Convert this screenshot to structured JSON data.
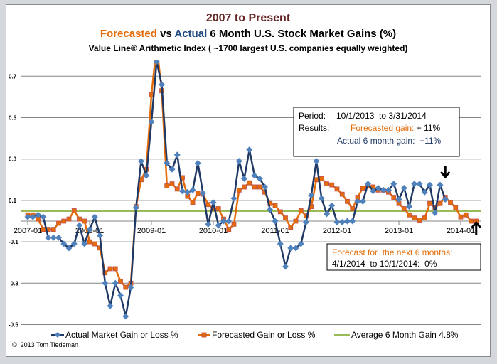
{
  "chart_data": {
    "type": "line",
    "title": "2007 to Present",
    "subtitle_parts": {
      "forecasted": "Forecasted",
      "vs": " vs ",
      "actual": "Actual",
      "rest": " 6 Month U.S. Stock Market Gains (%)"
    },
    "subtitle2": "Value Line® Arithmetic Index ( ~1700 largest U.S. companies equally weighted)",
    "ylim": [
      -0.5,
      0.8
    ],
    "yticks": [
      "0.7",
      "0.5",
      "0.3",
      "0.1",
      "-0.1",
      "-0.3",
      "-0.5"
    ],
    "ytick_values": [
      0.7,
      0.5,
      0.3,
      0.1,
      -0.1,
      -0.3,
      -0.5
    ],
    "xtick_labels": [
      "2007-01",
      "2008-01",
      "2009-01",
      "2010-01",
      "2011-01",
      "2012-01",
      "2013-01",
      "2014-01"
    ],
    "grid": true,
    "legend_placement": "bottom",
    "x_dates": [
      "2007-01",
      "2007-02",
      "2007-03",
      "2007-04",
      "2007-05",
      "2007-06",
      "2007-07",
      "2007-08",
      "2007-09",
      "2007-10",
      "2007-11",
      "2007-12",
      "2008-01",
      "2008-02",
      "2008-03",
      "2008-04",
      "2008-05",
      "2008-06",
      "2008-07",
      "2008-08",
      "2008-09",
      "2008-10",
      "2008-11",
      "2008-12",
      "2009-01",
      "2009-02",
      "2009-03",
      "2009-04",
      "2009-05",
      "2009-06",
      "2009-07",
      "2009-08",
      "2009-09",
      "2009-10",
      "2009-11",
      "2009-12",
      "2010-01",
      "2010-02",
      "2010-03",
      "2010-04",
      "2010-05",
      "2010-06",
      "2010-07",
      "2010-08",
      "2010-09",
      "2010-10",
      "2010-11",
      "2010-12",
      "2011-01",
      "2011-02",
      "2011-03",
      "2011-04",
      "2011-05",
      "2011-06",
      "2011-07",
      "2011-08",
      "2011-09",
      "2011-10",
      "2011-11",
      "2011-12",
      "2012-01",
      "2012-02",
      "2012-03",
      "2012-04",
      "2012-05",
      "2012-06",
      "2012-07",
      "2012-08",
      "2012-09",
      "2012-10",
      "2012-11",
      "2012-12",
      "2013-01",
      "2013-02",
      "2013-03",
      "2013-04",
      "2013-05",
      "2013-06",
      "2013-07",
      "2013-08",
      "2013-09",
      "2013-10",
      "2013-11",
      "2013-12",
      "2014-01",
      "2014-02",
      "2014-03",
      "2014-04"
    ],
    "series": [
      {
        "name": "Actual Market Gain or Loss %",
        "color": "#1f3864",
        "marker_color": "#4f81bd",
        "marker": "diamond",
        "values": [
          0.02,
          0.02,
          0.03,
          0.02,
          -0.08,
          -0.08,
          -0.08,
          -0.11,
          -0.13,
          -0.11,
          -0.02,
          -0.11,
          -0.04,
          0.02,
          -0.07,
          -0.3,
          -0.41,
          -0.3,
          -0.36,
          -0.46,
          -0.32,
          0.065,
          0.29,
          0.22,
          0.48,
          0.77,
          0.66,
          0.28,
          0.25,
          0.32,
          0.145,
          0.14,
          0.15,
          0.28,
          0.135,
          -0.015,
          0.09,
          -0.02,
          0.0,
          0.0,
          0.11,
          0.29,
          0.205,
          0.345,
          0.22,
          0.205,
          0.165,
          0.055,
          0.0,
          -0.11,
          -0.22,
          -0.13,
          -0.13,
          -0.11,
          -0.005,
          0.125,
          0.29,
          0.11,
          0.035,
          0.075,
          -0.005,
          -0.005,
          0.0,
          0.0,
          0.095,
          0.095,
          0.18,
          0.145,
          0.16,
          0.15,
          0.15,
          0.18,
          0.105,
          0.16,
          0.07,
          0.18,
          0.18,
          0.14,
          0.175,
          0.04,
          0.175,
          0.105
        ]
      },
      {
        "name": "Forecasted Gain or Loss %",
        "color": "#e36c09",
        "marker_color": "#e36c09",
        "marker": "square",
        "values": [
          0.03,
          0.03,
          0.01,
          -0.04,
          -0.04,
          -0.04,
          -0.01,
          0.0,
          0.01,
          0.05,
          0.01,
          0.0,
          -0.1,
          -0.11,
          -0.13,
          -0.25,
          -0.23,
          -0.23,
          -0.29,
          -0.32,
          -0.3,
          0.07,
          0.2,
          0.25,
          0.61,
          0.85,
          0.63,
          0.17,
          0.18,
          0.155,
          0.21,
          0.12,
          0.09,
          0.135,
          0.13,
          0.08,
          0.06,
          0.06,
          0.01,
          -0.04,
          -0.015,
          0.15,
          0.165,
          0.185,
          0.165,
          0.165,
          0.14,
          0.085,
          0.075,
          0.045,
          0.015,
          -0.03,
          0.0,
          0.05,
          0.025,
          0.07,
          0.2,
          0.205,
          0.18,
          0.175,
          0.155,
          0.13,
          0.095,
          0.06,
          0.115,
          0.16,
          0.17,
          0.165,
          0.15,
          0.15,
          0.14,
          0.115,
          0.085,
          0.06,
          0.03,
          0.015,
          0.005,
          0.015,
          0.085,
          0.065,
          0.085,
          0.115,
          0.09,
          0.065,
          0.02,
          0.03,
          0.0,
          0.0
        ]
      },
      {
        "name": "Average 6 Month Gain 4.8%",
        "color": "#9bbb59",
        "constant": 0.048
      }
    ],
    "annotations": {
      "results_box": {
        "period_label": "Period:",
        "period_value": "10/1/2013  to 3/31/2014",
        "results_label": "Results:",
        "forecast_text": "Forecasted gain:",
        "forecast_value": " + 11%",
        "actual_text": "Actual 6 month gain:  +11%"
      },
      "forecast_box": {
        "line1": "Forecast for  the next 6 months:",
        "line2": "4/1/2014  to 10/1/2014:  0%"
      },
      "arrows": [
        {
          "direction": "down",
          "at": "2013-10"
        },
        {
          "direction": "up",
          "at": "2014-04"
        }
      ]
    },
    "copyright": "©  2013 Tom Tiedeman"
  },
  "colors": {
    "title": "#632523",
    "forecast": "#e36c09",
    "actual": "#1f497d",
    "grid": "#868686"
  }
}
